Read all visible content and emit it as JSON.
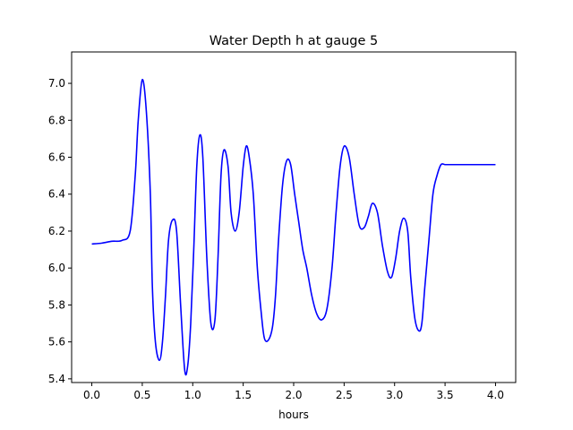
{
  "chart_data": {
    "type": "line",
    "title": "Water Depth h at gauge 5",
    "xlabel": "hours",
    "ylabel": "",
    "xlim": [
      -0.2,
      4.2
    ],
    "ylim": [
      5.38,
      7.17
    ],
    "xticks": [
      0.0,
      0.5,
      1.0,
      1.5,
      2.0,
      2.5,
      3.0,
      3.5,
      4.0
    ],
    "xtick_labels": [
      "0.0",
      "0.5",
      "1.0",
      "1.5",
      "2.0",
      "2.5",
      "3.0",
      "3.5",
      "4.0"
    ],
    "yticks": [
      5.4,
      5.6,
      5.8,
      6.0,
      6.2,
      6.4,
      6.6,
      6.8,
      7.0
    ],
    "ytick_labels": [
      "5.4",
      "5.6",
      "5.8",
      "6.0",
      "6.2",
      "6.4",
      "6.6",
      "6.8",
      "7.0"
    ],
    "grid": false,
    "series": [
      {
        "name": "",
        "color": "#0000ff",
        "x": [
          0.0,
          0.1,
          0.2,
          0.3,
          0.38,
          0.43,
          0.46,
          0.5,
          0.54,
          0.58,
          0.6,
          0.63,
          0.67,
          0.7,
          0.73,
          0.76,
          0.8,
          0.84,
          0.88,
          0.92,
          0.95,
          0.98,
          1.01,
          1.04,
          1.07,
          1.1,
          1.14,
          1.18,
          1.22,
          1.25,
          1.28,
          1.31,
          1.35,
          1.38,
          1.42,
          1.46,
          1.5,
          1.53,
          1.56,
          1.6,
          1.64,
          1.68,
          1.71,
          1.75,
          1.79,
          1.82,
          1.85,
          1.89,
          1.93,
          1.97,
          2.01,
          2.05,
          2.09,
          2.13,
          2.18,
          2.23,
          2.28,
          2.33,
          2.38,
          2.42,
          2.46,
          2.5,
          2.55,
          2.6,
          2.65,
          2.7,
          2.74,
          2.78,
          2.83,
          2.88,
          2.93,
          2.97,
          3.01,
          3.05,
          3.09,
          3.13,
          3.16,
          3.2,
          3.24,
          3.27,
          3.3,
          3.34,
          3.38,
          3.42,
          3.46,
          3.5,
          3.54,
          3.58,
          3.62,
          3.66,
          3.7,
          3.74,
          3.78,
          3.82,
          3.86,
          3.9,
          3.94,
          3.98,
          4.0
        ],
        "y": [
          6.13,
          6.135,
          6.145,
          6.15,
          6.2,
          6.5,
          6.8,
          7.02,
          6.85,
          6.4,
          5.9,
          5.6,
          5.5,
          5.6,
          5.85,
          6.15,
          6.26,
          6.2,
          5.8,
          5.45,
          5.47,
          5.7,
          6.1,
          6.55,
          6.72,
          6.6,
          6.05,
          5.7,
          5.72,
          6.05,
          6.5,
          6.64,
          6.55,
          6.3,
          6.2,
          6.3,
          6.55,
          6.66,
          6.6,
          6.4,
          6.0,
          5.75,
          5.62,
          5.61,
          5.68,
          5.85,
          6.15,
          6.45,
          6.58,
          6.56,
          6.4,
          6.25,
          6.1,
          6.0,
          5.85,
          5.75,
          5.72,
          5.78,
          6.0,
          6.3,
          6.55,
          6.66,
          6.6,
          6.4,
          6.23,
          6.22,
          6.28,
          6.35,
          6.3,
          6.12,
          5.98,
          5.95,
          6.05,
          6.2,
          6.27,
          6.2,
          5.95,
          5.73,
          5.66,
          5.7,
          5.9,
          6.15,
          6.4,
          6.5,
          6.56,
          6.56,
          6.56,
          6.56,
          6.56,
          6.56,
          6.56,
          6.56,
          6.56,
          6.56,
          6.56,
          6.56,
          6.56,
          6.56,
          6.56
        ]
      }
    ]
  }
}
